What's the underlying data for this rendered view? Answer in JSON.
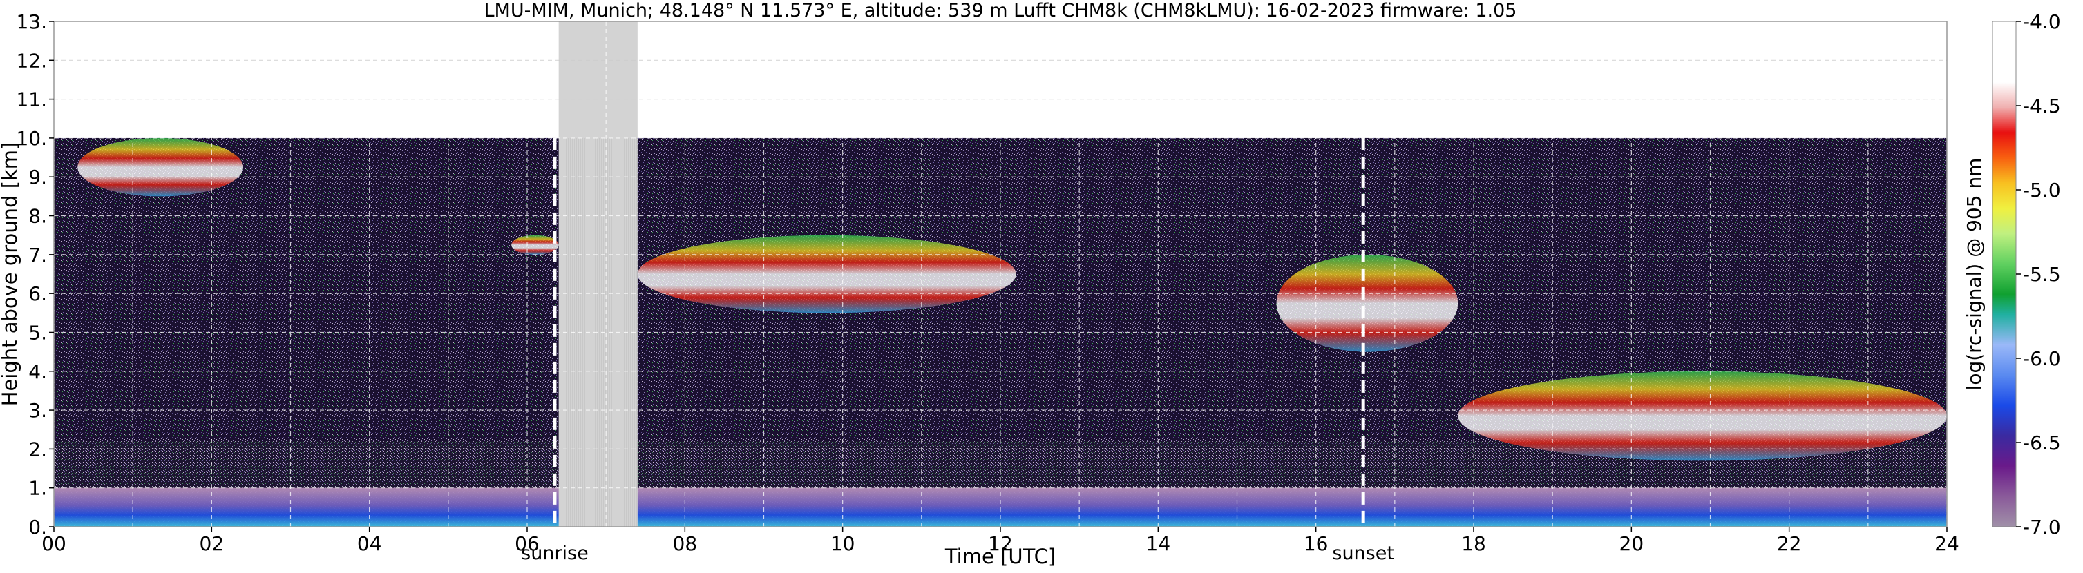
{
  "chart_data": {
    "type": "heatmap",
    "title": "LMU-MIM, Munich; 48.148° N 11.573° E, altitude: 539 m    Lufft CHM8k (CHM8kLMU): 16-02-2023    firmware: 1.05",
    "xlabel": "Time [UTC]",
    "ylabel": "Height above ground [km]",
    "xlim": [
      0,
      24
    ],
    "ylim": [
      0,
      13
    ],
    "x_ticks": [
      "00",
      "02",
      "04",
      "06",
      "08",
      "10",
      "12",
      "14",
      "16",
      "18",
      "20",
      "22",
      "24"
    ],
    "y_ticks": [
      "0.",
      "1.",
      "2.",
      "3.",
      "4.",
      "5.",
      "6.",
      "7.",
      "8.",
      "9.",
      "10.",
      "11.",
      "12.",
      "13."
    ],
    "grid": true,
    "data_max_height_km": 10,
    "no_data_interval_utc": [
      6.4,
      7.4
    ],
    "markers": [
      {
        "label": "sunrise",
        "time_utc": 6.35
      },
      {
        "label": "sunset",
        "time_utc": 16.6
      }
    ],
    "colorbar": {
      "label": "log(rc-signal) @ 905 nm",
      "range": [
        -7.0,
        -4.0
      ],
      "tick_labels": [
        "-4.0",
        "-4.5",
        "-5.0",
        "-5.5",
        "-6.0",
        "-6.5",
        "-7.0"
      ],
      "tick_values": [
        -4.0,
        -4.5,
        -5.0,
        -5.5,
        -6.0,
        -6.5,
        -7.0
      ]
    },
    "features": [
      {
        "type": "boundary_layer",
        "time_range": [
          0,
          24
        ],
        "height_km": [
          0,
          1.0
        ]
      },
      {
        "type": "cloud",
        "time_range": [
          0.3,
          2.4
        ],
        "height_km": [
          8.5,
          10.0
        ]
      },
      {
        "type": "cloud",
        "time_range": [
          5.8,
          6.4
        ],
        "height_km": [
          7.0,
          7.5
        ]
      },
      {
        "type": "cloud",
        "time_range": [
          7.4,
          12.2
        ],
        "height_km": [
          5.5,
          7.5
        ]
      },
      {
        "type": "cloud",
        "time_range": [
          15.5,
          17.8
        ],
        "height_km": [
          4.5,
          7.0
        ]
      },
      {
        "type": "cloud",
        "time_range": [
          17.8,
          24.0
        ],
        "height_km": [
          1.7,
          4.0
        ]
      }
    ]
  }
}
